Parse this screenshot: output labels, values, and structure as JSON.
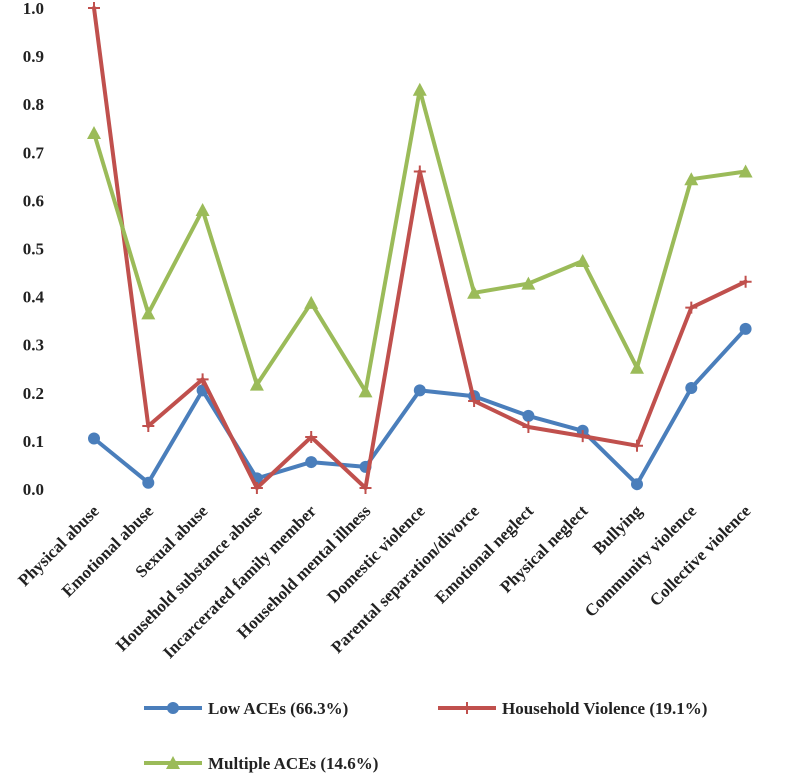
{
  "chart_data": {
    "type": "line",
    "title": "",
    "xlabel": "",
    "ylabel": "",
    "ylim": [
      0,
      1.0
    ],
    "yticks": [
      "0.0",
      "0.1",
      "0.2",
      "0.3",
      "0.4",
      "0.5",
      "0.6",
      "0.7",
      "0.8",
      "0.9",
      "1.0"
    ],
    "grid": false,
    "legend_position": "bottom",
    "categories": [
      "Physical abuse",
      "Emotional abuse",
      "Sexual abuse",
      "Household substance abuse",
      "Incarcerated family member",
      "Household mental illness",
      "Domestic violence",
      "Parental separation/divorce",
      "Emotional neglect",
      "Physical neglect",
      "Bullying",
      "Community violence",
      "Collective violence"
    ],
    "series": [
      {
        "name": "Low ACEs (66.3%)",
        "color": "#4a7ebb",
        "marker": "circle",
        "values": [
          0.105,
          0.013,
          0.205,
          0.022,
          0.056,
          0.046,
          0.205,
          0.193,
          0.152,
          0.121,
          0.01,
          0.21,
          0.333
        ]
      },
      {
        "name": "Household Violence (19.1%)",
        "color": "#c0504d",
        "marker": "plus",
        "values": [
          1.0,
          0.131,
          0.228,
          0.002,
          0.108,
          0.002,
          0.66,
          0.183,
          0.129,
          0.11,
          0.09,
          0.377,
          0.431
        ]
      },
      {
        "name": "Multiple ACEs (14.6%)",
        "color": "#9bbb59",
        "marker": "triangle",
        "values": [
          0.74,
          0.365,
          0.58,
          0.217,
          0.387,
          0.203,
          0.83,
          0.408,
          0.427,
          0.474,
          0.252,
          0.644,
          0.66
        ]
      }
    ]
  }
}
